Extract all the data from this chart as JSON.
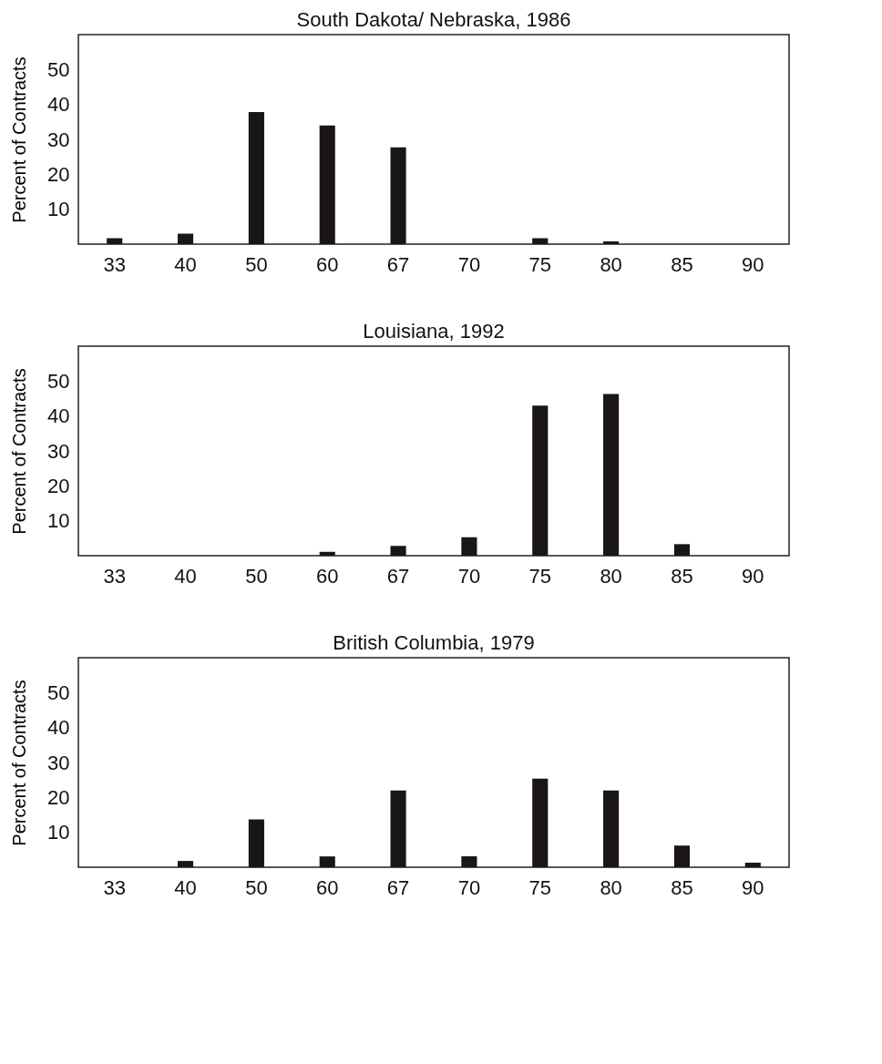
{
  "chart_data": [
    {
      "type": "bar",
      "title": "South Dakota/ Nebraska, 1986",
      "ylabel": "Percent of Contracts",
      "categories": [
        "33",
        "40",
        "50",
        "60",
        "67",
        "70",
        "75",
        "80",
        "85",
        "90"
      ],
      "values": [
        1.7,
        3,
        37.8,
        34,
        27.7,
        0,
        1.7,
        0.8,
        0,
        0
      ],
      "color": "#1a1616",
      "ylim": [
        0,
        60
      ],
      "yticks": [
        10,
        20,
        30,
        40,
        50
      ],
      "grid": false
    },
    {
      "type": "bar",
      "title": "Louisiana, 1992",
      "ylabel": "Percent of Contracts",
      "categories": [
        "33",
        "40",
        "50",
        "60",
        "67",
        "70",
        "75",
        "80",
        "85",
        "90"
      ],
      "values": [
        0,
        0,
        0,
        1.1,
        2.8,
        5.3,
        43,
        46.3,
        3.3,
        0
      ],
      "color": "#1a1616",
      "ylim": [
        0,
        60
      ],
      "yticks": [
        10,
        20,
        30,
        40,
        50
      ],
      "grid": false
    },
    {
      "type": "bar",
      "title": "British Columbia, 1979",
      "ylabel": "Percent of Contracts",
      "categories": [
        "33",
        "40",
        "50",
        "60",
        "67",
        "70",
        "75",
        "80",
        "85",
        "90"
      ],
      "values": [
        0,
        1.8,
        13.7,
        3.1,
        22,
        3.1,
        25.4,
        22,
        6.2,
        1.3
      ],
      "color": "#1a1616",
      "ylim": [
        0,
        60
      ],
      "yticks": [
        10,
        20,
        30,
        40,
        50
      ],
      "grid": false
    }
  ]
}
